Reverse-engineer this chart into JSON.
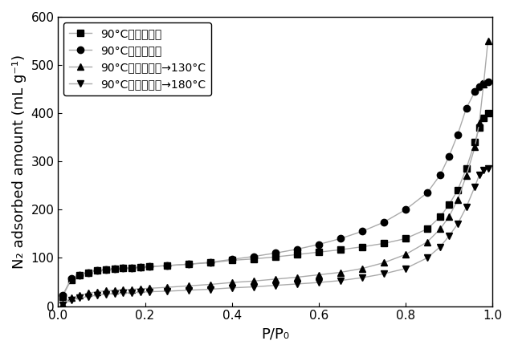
{
  "title": "",
  "xlabel": "P/P₀",
  "ylabel": "N₂ adsorbed amount (mL g⁻¹)",
  "xlim": [
    0.0,
    1.0
  ],
  "ylim": [
    0,
    600
  ],
  "yticks": [
    0,
    100,
    200,
    300,
    400,
    500,
    600
  ],
  "xticks": [
    0.0,
    0.2,
    0.4,
    0.6,
    0.8,
    1.0
  ],
  "series": [
    {
      "label": "90°C（開放系）",
      "marker": "s",
      "color": "#000000",
      "x": [
        0.01,
        0.03,
        0.05,
        0.07,
        0.09,
        0.11,
        0.13,
        0.15,
        0.17,
        0.19,
        0.21,
        0.25,
        0.3,
        0.35,
        0.4,
        0.45,
        0.5,
        0.55,
        0.6,
        0.65,
        0.7,
        0.75,
        0.8,
        0.85,
        0.88,
        0.9,
        0.92,
        0.94,
        0.96,
        0.97,
        0.98,
        0.99
      ],
      "y": [
        20,
        55,
        65,
        70,
        74,
        76,
        78,
        79,
        80,
        81,
        82,
        84,
        87,
        90,
        95,
        98,
        102,
        107,
        112,
        117,
        123,
        130,
        140,
        160,
        185,
        210,
        240,
        285,
        340,
        370,
        390,
        400
      ]
    },
    {
      "label": "90°C（閉鎖系）",
      "marker": "o",
      "color": "#000000",
      "x": [
        0.01,
        0.03,
        0.05,
        0.07,
        0.09,
        0.11,
        0.13,
        0.15,
        0.17,
        0.19,
        0.21,
        0.25,
        0.3,
        0.35,
        0.4,
        0.45,
        0.5,
        0.55,
        0.6,
        0.65,
        0.7,
        0.75,
        0.8,
        0.85,
        0.88,
        0.9,
        0.92,
        0.94,
        0.96,
        0.97,
        0.98,
        0.99
      ],
      "y": [
        22,
        57,
        65,
        70,
        74,
        76,
        78,
        79,
        80,
        81,
        82,
        84,
        87,
        91,
        97,
        103,
        110,
        118,
        128,
        140,
        155,
        174,
        200,
        235,
        272,
        310,
        355,
        410,
        445,
        455,
        462,
        465
      ]
    },
    {
      "label": "90°C（開放系）→130°C",
      "marker": "^",
      "color": "#000000",
      "x": [
        0.01,
        0.03,
        0.05,
        0.07,
        0.09,
        0.11,
        0.13,
        0.15,
        0.17,
        0.19,
        0.21,
        0.25,
        0.3,
        0.35,
        0.4,
        0.45,
        0.5,
        0.55,
        0.6,
        0.65,
        0.7,
        0.75,
        0.8,
        0.85,
        0.88,
        0.9,
        0.92,
        0.94,
        0.96,
        0.97,
        0.98,
        0.99
      ],
      "y": [
        5,
        17,
        22,
        27,
        30,
        32,
        33,
        34,
        35,
        36,
        37,
        39,
        42,
        45,
        49,
        52,
        56,
        60,
        65,
        70,
        78,
        90,
        107,
        133,
        160,
        185,
        220,
        270,
        330,
        380,
        460,
        550
      ]
    },
    {
      "label": "90°C（開放系）→180°C",
      "marker": "v",
      "color": "#000000",
      "x": [
        0.01,
        0.03,
        0.05,
        0.07,
        0.09,
        0.11,
        0.13,
        0.15,
        0.17,
        0.19,
        0.21,
        0.25,
        0.3,
        0.35,
        0.4,
        0.45,
        0.5,
        0.55,
        0.6,
        0.65,
        0.7,
        0.75,
        0.8,
        0.85,
        0.88,
        0.9,
        0.92,
        0.94,
        0.96,
        0.97,
        0.98,
        0.99
      ],
      "y": [
        3,
        13,
        17,
        20,
        23,
        25,
        26,
        27,
        28,
        29,
        30,
        31,
        33,
        35,
        38,
        40,
        43,
        46,
        49,
        53,
        59,
        67,
        78,
        100,
        123,
        145,
        170,
        205,
        248,
        272,
        282,
        285
      ]
    }
  ],
  "line_color": "#aaaaaa",
  "line_width": 1.0,
  "marker_size": 6,
  "background_color": "#ffffff",
  "legend_loc": "upper left",
  "legend_fontsize": 10,
  "axis_fontsize": 13,
  "tick_fontsize": 11
}
